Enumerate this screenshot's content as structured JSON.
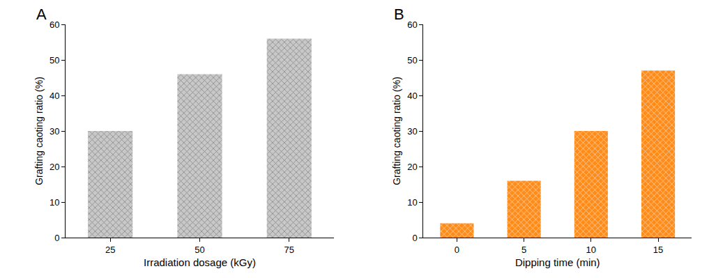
{
  "chart_data": [
    {
      "type": "bar",
      "title": "A",
      "x_label": "Irradiation dosage (kGy)",
      "y_label": "Grafting caoting ratio (%)",
      "categories": [
        "25",
        "50",
        "75"
      ],
      "values": [
        30,
        46,
        56
      ],
      "color": "#c8c8c8",
      "ylim": [
        0,
        60
      ],
      "yticks": [
        0,
        10,
        20,
        30,
        40,
        50,
        60
      ],
      "grid": false
    },
    {
      "type": "bar",
      "title": "B",
      "x_label": "Dipping time (min)",
      "y_label": "Grafting caoting ratio (%)",
      "categories": [
        "0",
        "5",
        "10",
        "15"
      ],
      "values": [
        4,
        16,
        30,
        47
      ],
      "color": "#ff8c1a",
      "ylim": [
        0,
        60
      ],
      "yticks": [
        0,
        10,
        20,
        30,
        40,
        50,
        60
      ],
      "grid": false
    }
  ]
}
